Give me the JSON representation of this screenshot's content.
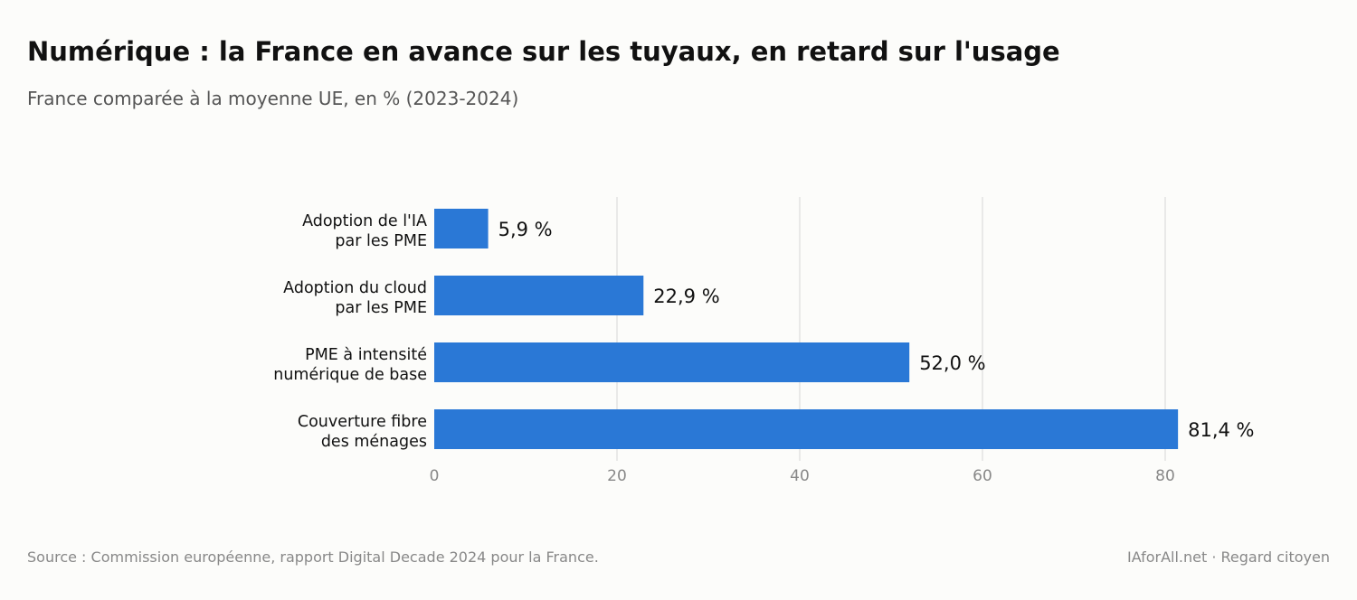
{
  "header": {
    "title": "Numérique : la France en avance sur les tuyaux, en retard sur l'usage",
    "subtitle": "France comparée à la moyenne UE, en % (2023-2024)"
  },
  "footer": {
    "source": "Source : Commission européenne, rapport Digital Decade 2024 pour la France.",
    "credit": "IAforAll.net · Regard citoyen"
  },
  "colors": {
    "bar": "#2a78d6",
    "grid": "#dddddd",
    "tick": "#888888",
    "label": "#111111",
    "background": "#fcfcfa"
  },
  "chart_data": {
    "type": "bar",
    "orientation": "horizontal",
    "categories": [
      [
        "Adoption de l'IA",
        "par les PME"
      ],
      [
        "Adoption du cloud",
        "par les PME"
      ],
      [
        "PME à intensité",
        "numérique de base"
      ],
      [
        "Couverture fibre",
        "des ménages"
      ]
    ],
    "values": [
      5.9,
      22.9,
      52.0,
      81.4
    ],
    "value_labels": [
      "5,9 %",
      "22,9 %",
      "52,0 %",
      "81,4 %"
    ],
    "xticks": [
      0,
      20,
      40,
      60,
      80
    ],
    "xlim": [
      0,
      89
    ],
    "grid": "vertical",
    "legend": "none"
  }
}
